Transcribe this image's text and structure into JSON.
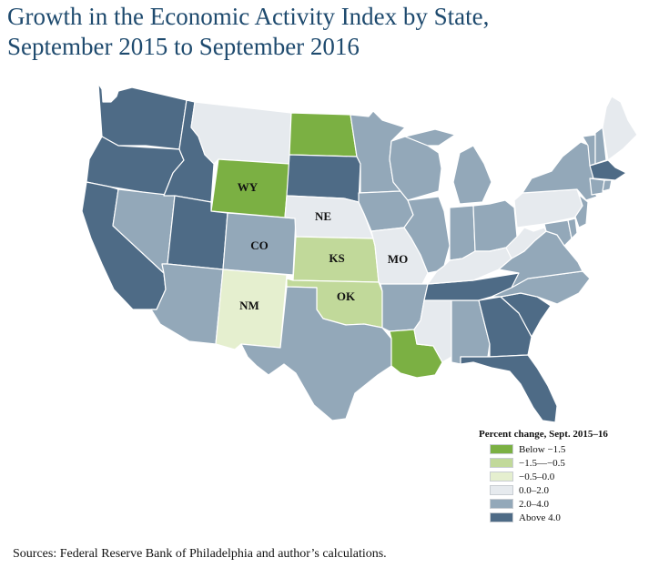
{
  "title_lines": [
    "Growth in the Economic Activity Index by State,",
    "September 2015 to September 2016"
  ],
  "source": "Sources:  Federal Reserve Bank of Philadelphia and author’s calculations.",
  "legend": {
    "title": "Percent change, Sept. 2015–16",
    "items": [
      {
        "label": "Below −1.5",
        "color": "#7bb043"
      },
      {
        "label": "−1.5—−0.5",
        "color": "#c1d99a"
      },
      {
        "label": "−0.5–0.0",
        "color": "#e5efcf"
      },
      {
        "label": "0.0–2.0",
        "color": "#e6eaee"
      },
      {
        "label": "2.0–4.0",
        "color": "#93a8b9"
      },
      {
        "label": "Above 4.0",
        "color": "#4e6b86"
      }
    ]
  },
  "state_labels": {
    "WY": "WY",
    "NE": "NE",
    "CO": "CO",
    "KS": "KS",
    "MO": "MO",
    "NM": "NM",
    "OK": "OK"
  },
  "colors": {
    "below_neg_1_5": "#7bb043",
    "neg_1_5_to_neg_0_5": "#c1d99a",
    "neg_0_5_to_0": "#e5efcf",
    "0_to_2": "#e6eaee",
    "2_to_4": "#93a8b9",
    "above_4": "#4e6b86",
    "title": "#1e4a6e"
  }
}
